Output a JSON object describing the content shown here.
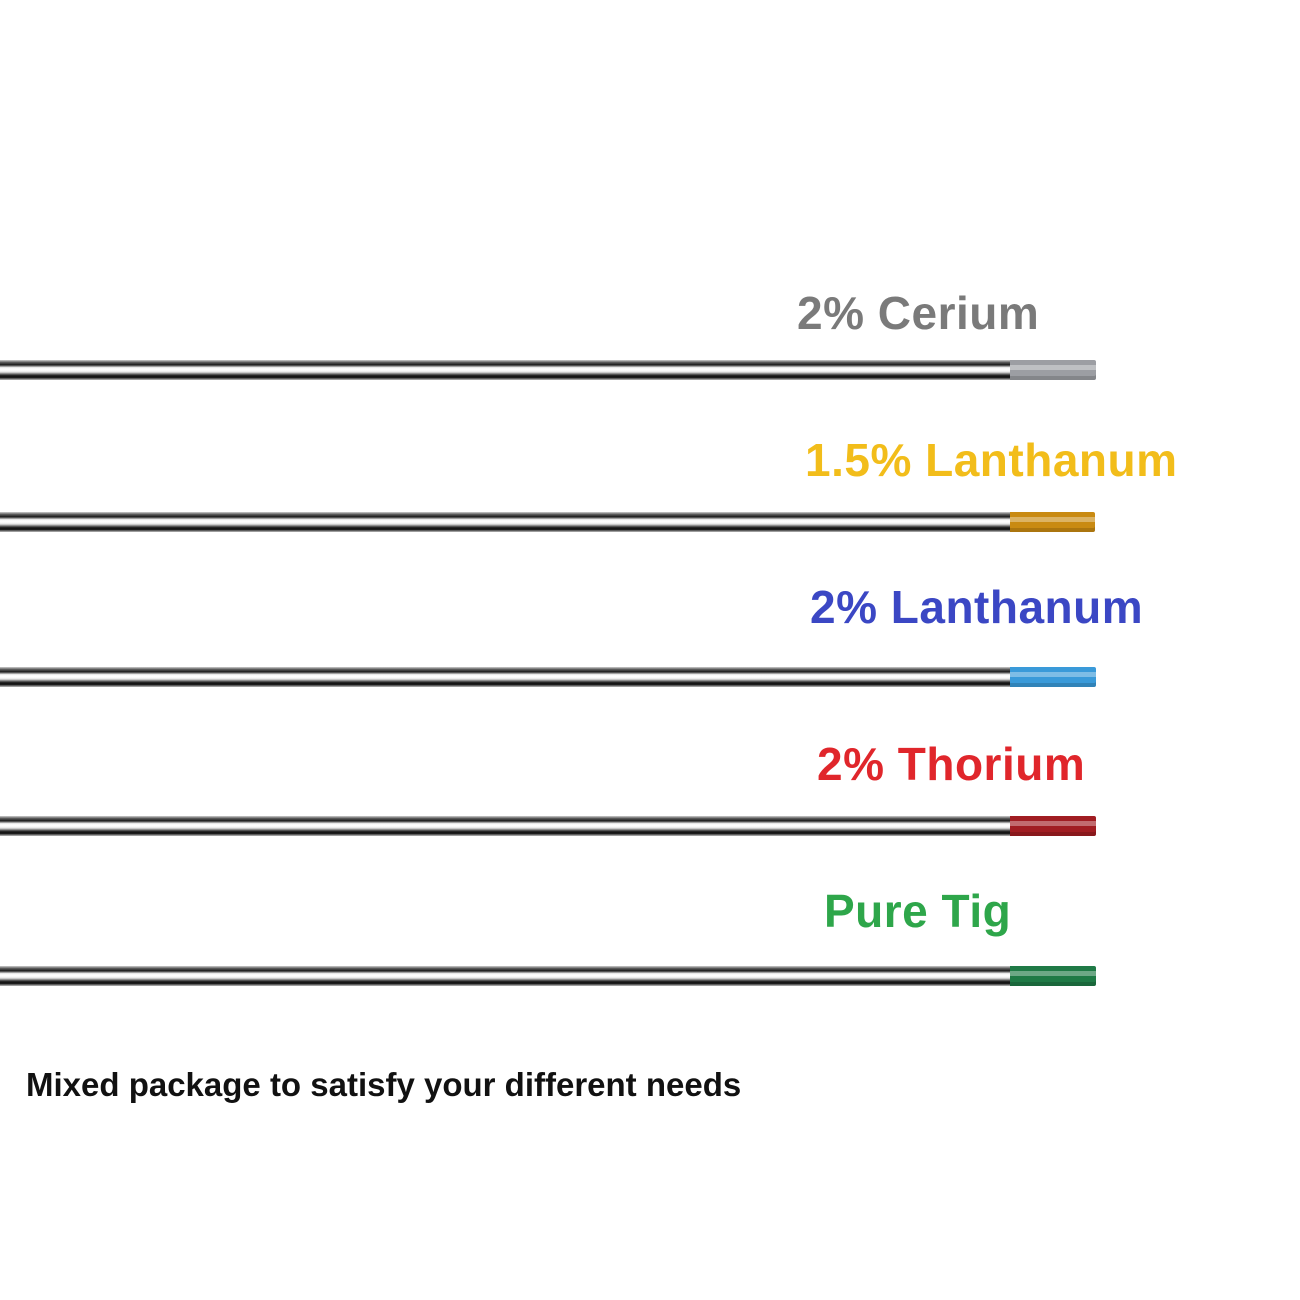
{
  "electrodes": [
    {
      "label": "2% Cerium",
      "label_color": "#7a7a7a",
      "tip_color": "#9c9ea3"
    },
    {
      "label": "1.5% Lanthanum",
      "label_color": "#f2bd1a",
      "tip_color": "#c98a12"
    },
    {
      "label": "2% Lanthanum",
      "label_color": "#3b47c4",
      "tip_color": "#3a9ad9"
    },
    {
      "label": "2% Thorium",
      "label_color": "#e0262b",
      "tip_color": "#a11d22"
    },
    {
      "label": "Pure Tig",
      "label_color": "#2ea64a",
      "tip_color": "#1f7a46"
    }
  ],
  "caption": "Mixed package to satisfy your different needs"
}
